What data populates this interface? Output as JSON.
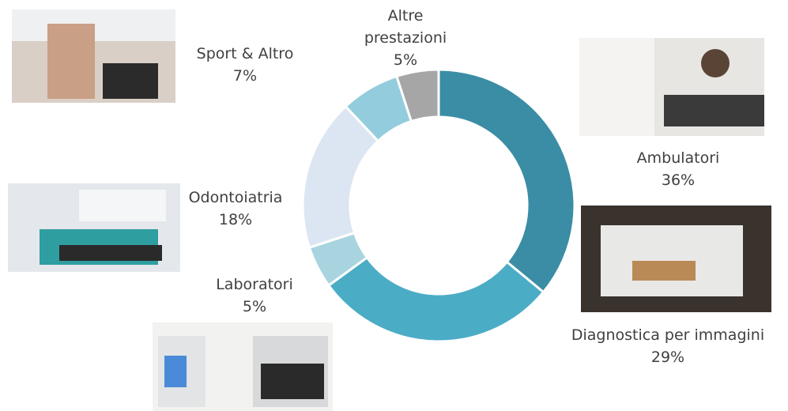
{
  "chart_data": {
    "type": "pie",
    "donut": true,
    "categories": [
      "Ambulatori",
      "Diagnostica per immagini",
      "Laboratori",
      "Odontoiatria",
      "Sport & Altro",
      "Altre prestazioni"
    ],
    "values": [
      36,
      29,
      5,
      18,
      7,
      5
    ],
    "value_labels": [
      "36%",
      "29%",
      "5%",
      "18%",
      "7%",
      "5%"
    ],
    "colors": [
      "#3a8da4",
      "#4bacc6",
      "#a8d4e0",
      "#dce6f2",
      "#93cddd",
      "#a6a6a6"
    ]
  }
}
